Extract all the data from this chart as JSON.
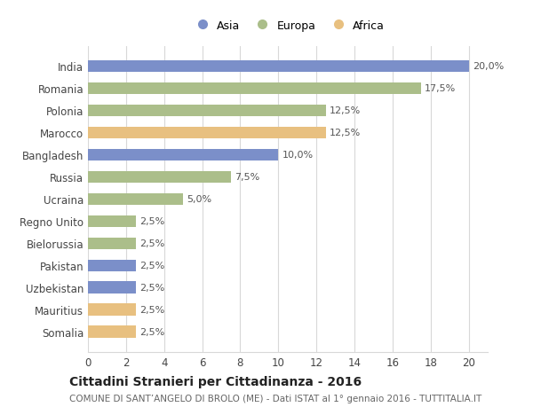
{
  "countries": [
    "India",
    "Romania",
    "Polonia",
    "Marocco",
    "Bangladesh",
    "Russia",
    "Ucraina",
    "Regno Unito",
    "Bielorussia",
    "Pakistan",
    "Uzbekistan",
    "Mauritius",
    "Somalia"
  ],
  "values": [
    20.0,
    17.5,
    12.5,
    12.5,
    10.0,
    7.5,
    5.0,
    2.5,
    2.5,
    2.5,
    2.5,
    2.5,
    2.5
  ],
  "labels": [
    "20,0%",
    "17,5%",
    "12,5%",
    "12,5%",
    "10,0%",
    "7,5%",
    "5,0%",
    "2,5%",
    "2,5%",
    "2,5%",
    "2,5%",
    "2,5%",
    "2,5%"
  ],
  "continents": [
    "Asia",
    "Europa",
    "Europa",
    "Africa",
    "Asia",
    "Europa",
    "Europa",
    "Europa",
    "Europa",
    "Asia",
    "Asia",
    "Africa",
    "Africa"
  ],
  "colors": {
    "Asia": "#7b8fc9",
    "Europa": "#abbe8a",
    "Africa": "#e8c080"
  },
  "legend_labels": [
    "Asia",
    "Europa",
    "Africa"
  ],
  "legend_colors": [
    "#7b8fc9",
    "#abbe8a",
    "#e8c080"
  ],
  "xlim": [
    0,
    21
  ],
  "xticks": [
    0,
    2,
    4,
    6,
    8,
    10,
    12,
    14,
    16,
    18,
    20
  ],
  "title": "Cittadini Stranieri per Cittadinanza - 2016",
  "subtitle": "COMUNE DI SANT’ANGELO DI BROLO (ME) - Dati ISTAT al 1° gennaio 2016 - TUTTITALIA.IT",
  "background_color": "#ffffff",
  "grid_color": "#d8d8d8",
  "bar_height": 0.55,
  "title_fontsize": 10,
  "subtitle_fontsize": 7.5,
  "tick_fontsize": 8.5,
  "label_fontsize": 8.0
}
